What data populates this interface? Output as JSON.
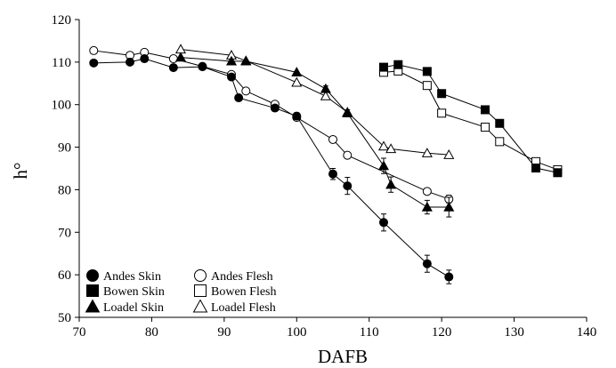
{
  "chart_data": {
    "type": "scatter",
    "xlabel": "DAFB",
    "ylabel": "h°",
    "xlim": [
      70,
      140
    ],
    "ylim": [
      50,
      120
    ],
    "xticks": [
      70,
      80,
      90,
      100,
      110,
      120,
      130,
      140
    ],
    "yticks": [
      50,
      60,
      70,
      80,
      90,
      100,
      110,
      120
    ],
    "grid": false,
    "legend_position": "bottom-left",
    "series": [
      {
        "name": "Andes Skin",
        "marker": "circle",
        "fill": "#000000",
        "x": [
          72,
          77,
          79,
          83,
          87,
          91,
          92,
          97,
          100,
          105,
          107,
          112,
          118,
          121
        ],
        "y": [
          109.8,
          110.0,
          110.8,
          108.7,
          108.9,
          106.5,
          101.6,
          99.2,
          97.3,
          83.7,
          80.9,
          72.3,
          62.6,
          59.5
        ],
        "err": [
          0,
          0,
          0,
          0,
          0,
          0.7,
          0.7,
          0,
          0.8,
          1.3,
          2.0,
          2.0,
          2.0,
          1.6
        ]
      },
      {
        "name": "Bowen Skin",
        "marker": "square",
        "fill": "#000000",
        "x": [
          112,
          114,
          118,
          120,
          126,
          128,
          133,
          136
        ],
        "y": [
          108.8,
          109.4,
          107.8,
          102.6,
          98.8,
          95.6,
          85.1,
          84.0
        ],
        "err": [
          0,
          0,
          0,
          0,
          0,
          0,
          0.8,
          0.6
        ]
      },
      {
        "name": "Loadel Skin",
        "marker": "triangle",
        "fill": "#000000",
        "x": [
          84,
          91,
          93,
          100,
          104,
          107,
          112,
          113,
          118,
          121
        ],
        "y": [
          111.1,
          110.2,
          110.2,
          107.6,
          103.7,
          98.0,
          85.6,
          81.2,
          75.9,
          75.9
        ],
        "err": [
          0,
          0,
          0,
          0,
          0.7,
          0.8,
          1.8,
          1.8,
          1.6,
          2.3
        ]
      },
      {
        "name": "Andes Flesh",
        "marker": "circle",
        "fill": "#ffffff",
        "x": [
          72,
          77,
          79,
          83,
          87,
          91,
          93,
          97,
          100,
          105,
          107,
          118,
          121
        ],
        "y": [
          112.7,
          111.6,
          112.3,
          110.8,
          109.0,
          107.1,
          103.2,
          100.1,
          97.0,
          91.8,
          88.1,
          79.6,
          77.8
        ],
        "err": [
          0,
          0,
          0,
          0,
          0,
          0,
          0,
          0,
          0,
          0,
          0.6,
          0,
          0.9
        ]
      },
      {
        "name": "Bowen Flesh",
        "marker": "square",
        "fill": "#ffffff",
        "x": [
          112,
          114,
          118,
          120,
          126,
          128,
          133,
          136
        ],
        "y": [
          107.6,
          107.9,
          104.5,
          98.0,
          94.7,
          91.3,
          86.6,
          84.7
        ],
        "err": [
          0,
          0,
          0,
          0,
          0,
          0,
          0,
          0
        ]
      },
      {
        "name": "Loadel Flesh",
        "marker": "triangle",
        "fill": "#ffffff",
        "x": [
          84,
          91,
          93,
          100,
          104,
          107,
          112,
          113,
          118,
          121
        ],
        "y": [
          113.0,
          111.6,
          110.3,
          105.2,
          102.0,
          98.2,
          90.2,
          89.6,
          88.6,
          88.2
        ],
        "err": [
          0,
          0,
          0,
          0,
          0,
          0,
          0,
          0,
          0,
          0
        ]
      }
    ]
  }
}
